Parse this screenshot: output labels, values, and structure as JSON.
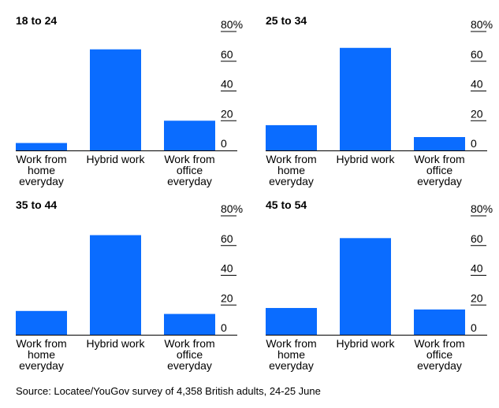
{
  "chart_data": [
    {
      "type": "bar",
      "title": "18 to 24",
      "categories": [
        "Work from home everyday",
        "Hybrid work",
        "Work from office everyday"
      ],
      "values": [
        5,
        68,
        20
      ],
      "ylim": [
        0,
        80
      ],
      "y_ticks": [
        "0",
        "20",
        "40",
        "60",
        "80%"
      ],
      "color": "#0a6cff",
      "grid": false
    },
    {
      "type": "bar",
      "title": "25 to 34",
      "categories": [
        "Work from home everyday",
        "Hybrid work",
        "Work from office everyday"
      ],
      "values": [
        17,
        69,
        9
      ],
      "ylim": [
        0,
        80
      ],
      "y_ticks": [
        "0",
        "20",
        "40",
        "60",
        "80%"
      ],
      "color": "#0a6cff",
      "grid": false
    },
    {
      "type": "bar",
      "title": "35 to 44",
      "categories": [
        "Work from home everyday",
        "Hybrid work",
        "Work from office everyday"
      ],
      "values": [
        16,
        67,
        14
      ],
      "ylim": [
        0,
        80
      ],
      "y_ticks": [
        "0",
        "20",
        "40",
        "60",
        "80%"
      ],
      "color": "#0a6cff",
      "grid": false
    },
    {
      "type": "bar",
      "title": "45 to 54",
      "categories": [
        "Work from home everyday",
        "Hybrid work",
        "Work from office everyday"
      ],
      "values": [
        18,
        65,
        17
      ],
      "ylim": [
        0,
        80
      ],
      "y_ticks": [
        "0",
        "20",
        "40",
        "60",
        "80%"
      ],
      "color": "#0a6cff",
      "grid": false
    }
  ],
  "source": "Source: Locatee/YouGov survey of 4,358 British adults, 24-25 June"
}
